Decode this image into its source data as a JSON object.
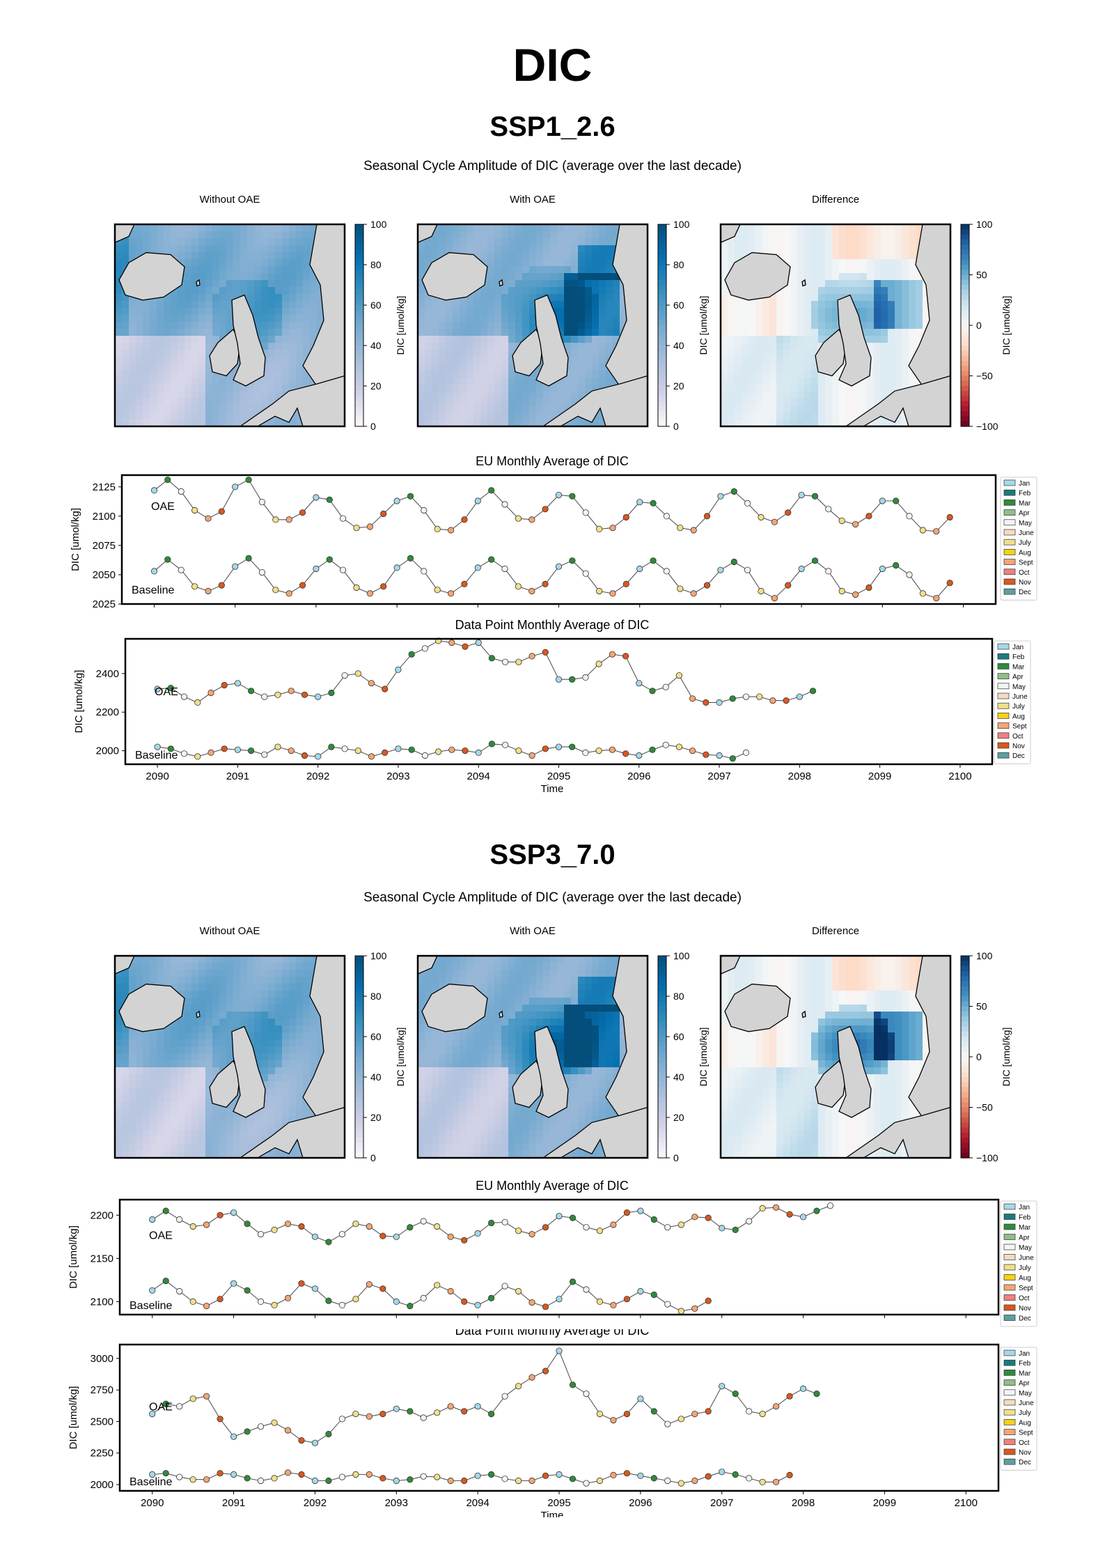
{
  "page": {
    "title": "DIC"
  },
  "colors": {
    "land": "#d3d3d3",
    "coast": "#000000",
    "months": [
      "#a6d8e8",
      "#1a7a7e",
      "#2e8b3a",
      "#8fbf86",
      "#f4f4f4",
      "#f5dcc0",
      "#f0e08a",
      "#f5d215",
      "#f3a673",
      "#f08080",
      "#d9581e",
      "#5f9ea0"
    ]
  },
  "legend_months": [
    "Jan",
    "Feb",
    "Mar",
    "Apr",
    "May",
    "June",
    "July",
    "Aug",
    "Sept",
    "Oct",
    "Nov",
    "Dec"
  ],
  "sections": [
    {
      "scenario": "SSP1_2.6",
      "subtitle": "Seasonal Cycle Amplitude of DIC (average over the last decade)",
      "maps": [
        {
          "title": "Without OAE",
          "cbar_label": "DIC [umol/kg]",
          "ticks": [
            "100",
            "80",
            "60",
            "40",
            "20",
            "0"
          ],
          "cmap": "blue",
          "pattern": "without"
        },
        {
          "title": "With OAE",
          "cbar_label": "DIC [umol/kg]",
          "ticks": [
            "100",
            "80",
            "60",
            "40",
            "20",
            "0"
          ],
          "cmap": "blue",
          "pattern": "with"
        },
        {
          "title": "Difference",
          "cbar_label": "DIC [umol/kg]",
          "ticks": [
            "100",
            "50",
            "0",
            "−50",
            "−100"
          ],
          "cmap": "div",
          "pattern": "diff"
        }
      ],
      "timeseries": [
        {
          "title": "EU Monthly Average of DIC",
          "ylabel": "DIC [umol/kg]",
          "label_top": "OAE",
          "label_bottom": "Baseline"
        },
        {
          "title": "Data Point Monthly Average of DIC",
          "ylabel": "DIC [umol/kg]",
          "label_top": "OAE",
          "label_bottom": "Baseline",
          "xlabel": "Time"
        }
      ]
    },
    {
      "scenario": "SSP3_7.0",
      "subtitle": "Seasonal Cycle Amplitude of DIC (average over the last decade)",
      "maps": [
        {
          "title": "Without OAE",
          "cbar_label": "DIC [umol/kg]",
          "ticks": [
            "100",
            "80",
            "60",
            "40",
            "20",
            "0"
          ],
          "cmap": "blue",
          "pattern": "without"
        },
        {
          "title": "With OAE",
          "cbar_label": "DIC [umol/kg]",
          "ticks": [
            "100",
            "80",
            "60",
            "40",
            "20",
            "0"
          ],
          "cmap": "blue",
          "pattern": "with2"
        },
        {
          "title": "Difference",
          "cbar_label": "DIC [umol/kg]",
          "ticks": [
            "100",
            "50",
            "0",
            "−50",
            "−100"
          ],
          "cmap": "div",
          "pattern": "diff2"
        }
      ],
      "timeseries": [
        {
          "title": "EU Monthly Average of DIC",
          "ylabel": "DIC [umol/kg]",
          "label_top": "OAE",
          "label_bottom": "Baseline"
        },
        {
          "title": "Data Point Monthly Average of DIC",
          "ylabel": "DIC [umol/kg]",
          "label_top": "OAE",
          "label_bottom": "Baseline",
          "xlabel": "Time"
        }
      ]
    }
  ],
  "chart_data": [
    {
      "type": "line",
      "title": "EU Monthly Average of DIC",
      "ylabel": "DIC [umol/kg]",
      "xlim": [
        2089.6,
        2100.4
      ],
      "ylim": [
        2025,
        2135
      ],
      "yticks": [
        2025,
        2050,
        2075,
        2100,
        2125
      ],
      "xticks": [
        2090,
        2091,
        2092,
        2093,
        2094,
        2095,
        2096,
        2097,
        2098,
        2099,
        2100
      ],
      "start": 2090,
      "step_months": 2,
      "series": [
        {
          "name": "OAE",
          "values": [
            2122,
            2131,
            2121,
            2105,
            2098,
            2104,
            2125,
            2131,
            2112,
            2097,
            2097,
            2103,
            2116,
            2114,
            2098,
            2090,
            2091,
            2102,
            2113,
            2117,
            2105,
            2089,
            2088,
            2097,
            2113,
            2122,
            2110,
            2098,
            2097,
            2106,
            2118,
            2117,
            2103,
            2089,
            2090,
            2099,
            2112,
            2111,
            2100,
            2090,
            2088,
            2100,
            2117,
            2121,
            2111,
            2099,
            2095,
            2103,
            2118,
            2117,
            2106,
            2096,
            2093,
            2100,
            2113,
            2113,
            2100,
            2088,
            2087,
            2099
          ]
        },
        {
          "name": "Baseline",
          "values": [
            2053,
            2063,
            2054,
            2040,
            2036,
            2041,
            2057,
            2064,
            2052,
            2037,
            2034,
            2041,
            2055,
            2063,
            2054,
            2039,
            2034,
            2040,
            2056,
            2064,
            2053,
            2037,
            2034,
            2042,
            2056,
            2063,
            2055,
            2040,
            2036,
            2042,
            2057,
            2062,
            2051,
            2036,
            2034,
            2042,
            2055,
            2062,
            2053,
            2038,
            2034,
            2041,
            2054,
            2061,
            2054,
            2036,
            2030,
            2041,
            2055,
            2062,
            2053,
            2036,
            2033,
            2039,
            2055,
            2058,
            2050,
            2034,
            2030,
            2043
          ]
        }
      ]
    },
    {
      "type": "line",
      "title": "Data Point Monthly Average of DIC",
      "ylabel": "DIC [umol/kg]",
      "xlabel": "Time",
      "xlim": [
        2089.6,
        2100.4
      ],
      "ylim": [
        1930,
        2580
      ],
      "yticks": [
        2000,
        2200,
        2400
      ],
      "xticks": [
        2090,
        2091,
        2092,
        2093,
        2094,
        2095,
        2096,
        2097,
        2098,
        2099,
        2100
      ],
      "start": 2090,
      "step_months": 2,
      "series": [
        {
          "name": "OAE",
          "values": [
            2320,
            2325,
            2280,
            2250,
            2300,
            2340,
            2350,
            2310,
            2280,
            2290,
            2310,
            2290,
            2280,
            2300,
            2390,
            2400,
            2350,
            2320,
            2420,
            2500,
            2530,
            2570,
            2560,
            2540,
            2560,
            2480,
            2460,
            2460,
            2490,
            2510,
            2370,
            2370,
            2380,
            2450,
            2500,
            2490,
            2350,
            2310,
            2330,
            2390,
            2270,
            2250,
            2250,
            2270,
            2280,
            2280,
            2260,
            2260,
            2280,
            2310
          ]
        },
        {
          "name": "Baseline",
          "values": [
            2020,
            2010,
            1985,
            1970,
            1990,
            2010,
            2005,
            2000,
            1980,
            2020,
            2000,
            1975,
            1970,
            2020,
            2010,
            2000,
            1970,
            1990,
            2010,
            2005,
            1975,
            1995,
            2005,
            2000,
            1990,
            2035,
            2030,
            2000,
            1975,
            2010,
            2020,
            2020,
            1990,
            2000,
            2005,
            1985,
            1975,
            2005,
            2030,
            2020,
            2000,
            1980,
            1975,
            1960,
            1990
          ]
        }
      ]
    },
    {
      "type": "line",
      "title": "EU Monthly Average of DIC",
      "ylabel": "DIC [umol/kg]",
      "xlim": [
        2089.6,
        2100.4
      ],
      "ylim": [
        2085,
        2218
      ],
      "yticks": [
        2100,
        2150,
        2200
      ],
      "xticks": [
        2090,
        2091,
        2092,
        2093,
        2094,
        2095,
        2096,
        2097,
        2098,
        2099,
        2100
      ],
      "start": 2090,
      "step_months": 2,
      "series": [
        {
          "name": "OAE",
          "values": [
            2195,
            2205,
            2195,
            2187,
            2189,
            2200,
            2203,
            2190,
            2178,
            2183,
            2190,
            2187,
            2175,
            2169,
            2178,
            2190,
            2187,
            2176,
            2175,
            2186,
            2193,
            2187,
            2175,
            2171,
            2179,
            2191,
            2192,
            2182,
            2178,
            2186,
            2199,
            2197,
            2186,
            2182,
            2189,
            2203,
            2205,
            2195,
            2186,
            2189,
            2198,
            2197,
            2185,
            2183,
            2193,
            2208,
            2209,
            2201,
            2198,
            2205,
            2211
          ]
        },
        {
          "name": "Baseline",
          "values": [
            2113,
            2124,
            2112,
            2100,
            2095,
            2103,
            2121,
            2113,
            2100,
            2096,
            2104,
            2121,
            2115,
            2101,
            2096,
            2103,
            2120,
            2115,
            2100,
            2095,
            2104,
            2119,
            2112,
            2100,
            2096,
            2104,
            2118,
            2112,
            2099,
            2094,
            2103,
            2123,
            2114,
            2100,
            2096,
            2103,
            2112,
            2108,
            2097,
            2089,
            2092,
            2101
          ]
        }
      ]
    },
    {
      "type": "line",
      "title": "Data Point Monthly Average of DIC",
      "ylabel": "DIC [umol/kg]",
      "xlabel": "Time",
      "xlim": [
        2089.6,
        2100.4
      ],
      "ylim": [
        1950,
        3110
      ],
      "yticks": [
        2000,
        2250,
        2500,
        2750,
        3000
      ],
      "xticks": [
        2090,
        2091,
        2092,
        2093,
        2094,
        2095,
        2096,
        2097,
        2098,
        2099,
        2100
      ],
      "start": 2090,
      "step_months": 2,
      "series": [
        {
          "name": "OAE",
          "values": [
            2560,
            2640,
            2620,
            2680,
            2700,
            2520,
            2380,
            2420,
            2460,
            2490,
            2430,
            2350,
            2330,
            2400,
            2520,
            2560,
            2540,
            2560,
            2600,
            2580,
            2530,
            2570,
            2620,
            2580,
            2620,
            2560,
            2700,
            2780,
            2850,
            2900,
            3060,
            2790,
            2720,
            2560,
            2510,
            2560,
            2680,
            2580,
            2480,
            2520,
            2560,
            2580,
            2780,
            2720,
            2580,
            2560,
            2620,
            2700,
            2760,
            2720
          ]
        },
        {
          "name": "Baseline",
          "values": [
            2080,
            2090,
            2060,
            2040,
            2040,
            2090,
            2080,
            2050,
            2030,
            2050,
            2095,
            2080,
            2030,
            2030,
            2060,
            2080,
            2080,
            2050,
            2030,
            2040,
            2065,
            2060,
            2030,
            2030,
            2070,
            2080,
            2045,
            2030,
            2030,
            2070,
            2080,
            2045,
            2010,
            2030,
            2075,
            2090,
            2070,
            2050,
            2030,
            2010,
            2030,
            2065,
            2100,
            2080,
            2050,
            2020,
            2020,
            2075
          ]
        }
      ]
    }
  ]
}
